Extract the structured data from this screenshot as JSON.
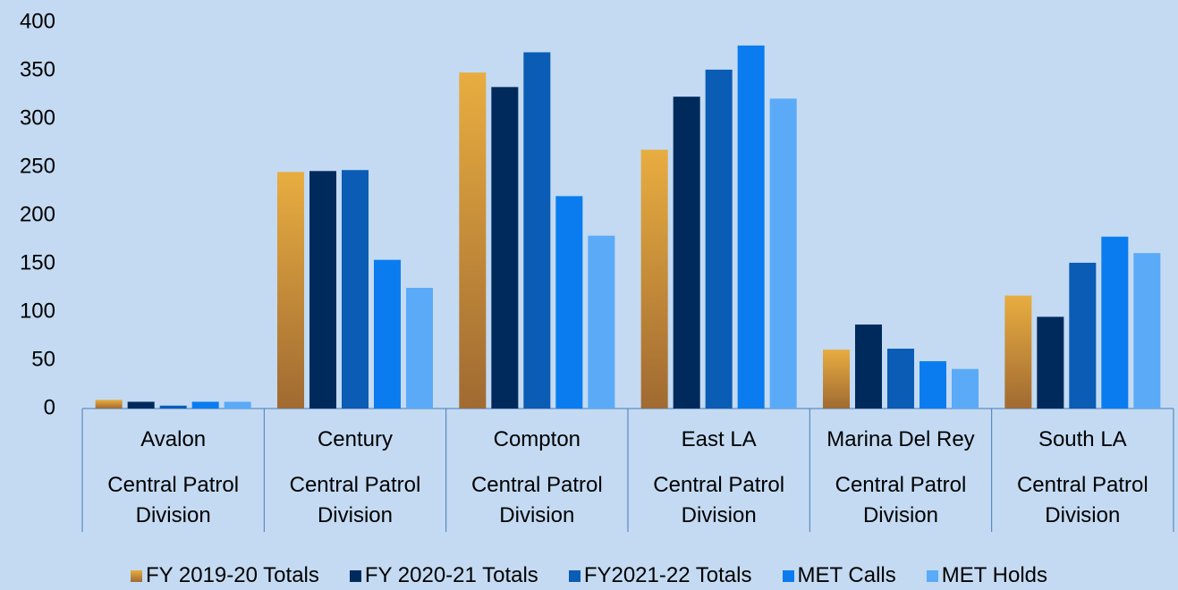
{
  "chart_data": {
    "type": "bar",
    "categories": [
      "Avalon",
      "Century",
      "Compton",
      "East LA",
      "Marina Del Rey",
      "South LA"
    ],
    "category_groups": [
      "Central Patrol Division",
      "Central Patrol Division",
      "Central Patrol Division",
      "Central Patrol Division",
      "Central Patrol Division",
      "Central Patrol Division"
    ],
    "series": [
      {
        "name": "FY 2019-20 Totals",
        "color": "#d19a3e",
        "values": [
          9,
          245,
          348,
          268,
          61,
          117
        ]
      },
      {
        "name": "FY 2020-21 Totals",
        "color": "#002a5c",
        "values": [
          7,
          246,
          333,
          323,
          87,
          95
        ]
      },
      {
        "name": "FY2021-22 Totals",
        "color": "#0a5cb4",
        "values": [
          3,
          247,
          369,
          351,
          62,
          151
        ]
      },
      {
        "name": "MET Calls",
        "color": "#0a7cf0",
        "values": [
          7,
          154,
          220,
          376,
          49,
          178
        ]
      },
      {
        "name": "MET Holds",
        "color": "#5aaaf8",
        "values": [
          7,
          125,
          179,
          321,
          41,
          161
        ]
      }
    ],
    "ylim": [
      0,
      400
    ],
    "yticks": [
      0,
      50,
      100,
      150,
      200,
      250,
      300,
      350,
      400
    ],
    "grid": false,
    "legend": "bottom"
  }
}
